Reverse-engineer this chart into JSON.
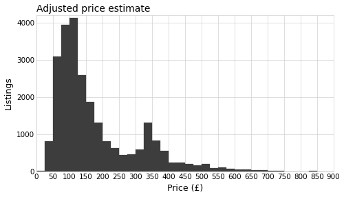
{
  "title": "Adjusted price estimate",
  "xlabel": "Price (£)",
  "ylabel": "Listings",
  "xlim": [
    0,
    900
  ],
  "ylim": [
    0,
    4200
  ],
  "xticks": [
    0,
    50,
    100,
    150,
    200,
    250,
    300,
    350,
    400,
    450,
    500,
    550,
    600,
    650,
    700,
    750,
    800,
    850,
    900
  ],
  "yticks": [
    0,
    1000,
    2000,
    3000,
    4000
  ],
  "bar_color": "#3d3d3d",
  "bar_edge_color": "#3d3d3d",
  "background_color": "#ffffff",
  "grid_color": "#d0d0d0",
  "bin_width": 25,
  "bar_heights": [
    25,
    820,
    3100,
    3950,
    4130,
    2600,
    1880,
    1320,
    820,
    630,
    450,
    460,
    600,
    1310,
    830,
    560,
    250,
    240,
    200,
    170,
    200,
    100,
    120,
    80,
    65,
    60,
    40,
    30,
    20,
    15,
    10,
    8,
    5,
    15,
    5,
    5
  ],
  "bin_start": 0,
  "title_fontsize": 10,
  "axis_fontsize": 9,
  "tick_fontsize": 7.5
}
